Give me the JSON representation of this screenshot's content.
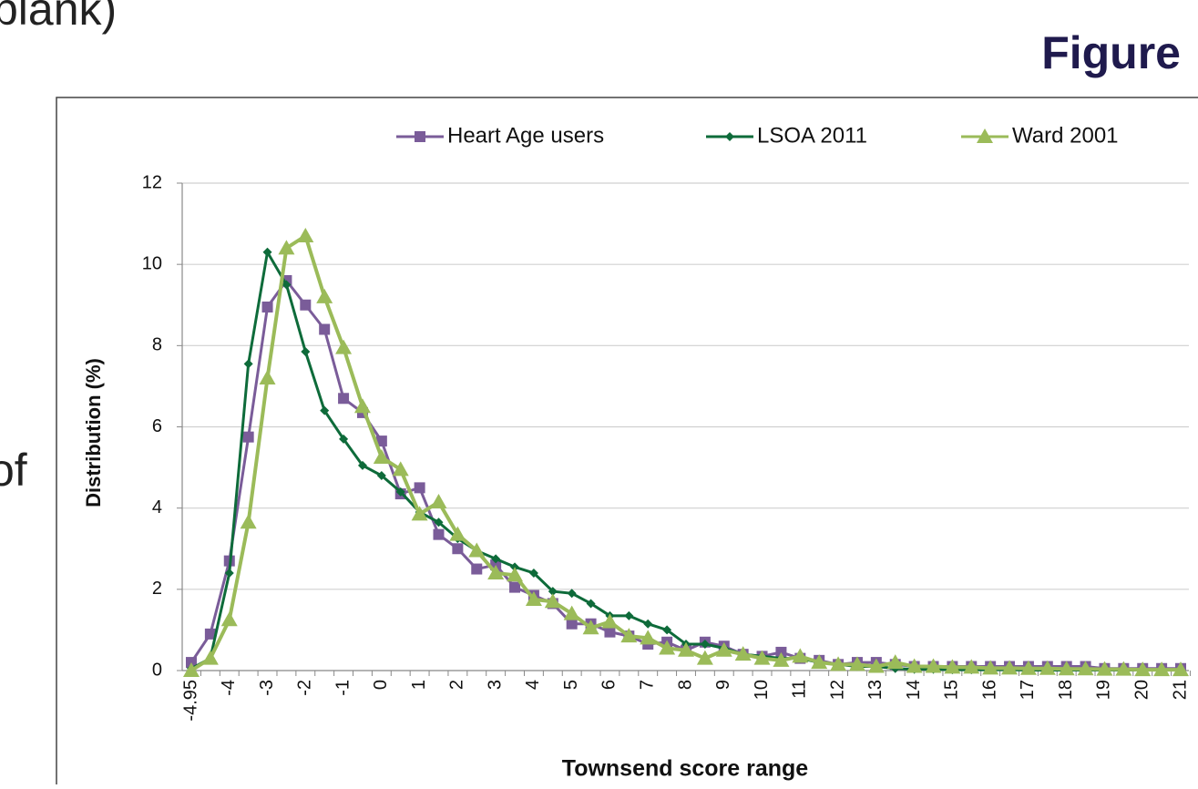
{
  "slide": {
    "top_left_text": "blank)",
    "heading": "Figure",
    "left_text": "of"
  },
  "chart_data": {
    "type": "line",
    "xlabel": "Townsend score range",
    "ylabel": "Distribution (%)",
    "categories": [
      "-4.95",
      null,
      "-4",
      null,
      "-3",
      null,
      "-2",
      null,
      "-1",
      null,
      "0",
      null,
      "1",
      null,
      "2",
      null,
      "3",
      null,
      "4",
      null,
      "5",
      null,
      "6",
      null,
      "7",
      null,
      "8",
      null,
      "9",
      null,
      "10",
      null,
      "11",
      null,
      "12",
      null,
      "13",
      null,
      "14",
      null,
      "15",
      null,
      "16",
      null,
      "17",
      null,
      "18",
      null,
      "19",
      null,
      "20",
      null,
      "21"
    ],
    "ylim": [
      0,
      12
    ],
    "yticks": [
      0,
      2,
      4,
      6,
      8,
      10,
      12
    ],
    "grid": true,
    "legend": "top",
    "series": [
      {
        "name": "Heart Age users",
        "color": "#7a5c99",
        "marker": "square",
        "values": [
          0.2,
          0.9,
          2.7,
          5.75,
          8.95,
          9.6,
          9.0,
          8.4,
          6.7,
          6.35,
          5.65,
          4.35,
          4.5,
          3.35,
          3.0,
          2.5,
          2.6,
          2.05,
          1.85,
          1.65,
          1.15,
          1.15,
          0.95,
          0.85,
          0.65,
          0.7,
          0.5,
          0.7,
          0.6,
          0.4,
          0.35,
          0.45,
          0.3,
          0.25,
          0.15,
          0.2,
          0.2,
          0.15,
          0.1,
          0.1,
          0.1,
          0.1,
          0.1,
          0.1,
          0.1,
          0.1,
          0.1,
          0.1,
          0.05,
          0.05,
          0.05,
          0.05,
          0.05
        ]
      },
      {
        "name": "LSOA 2011",
        "color": "#0e6b3a",
        "marker": "diamond",
        "values": [
          0.05,
          0.3,
          2.4,
          7.55,
          10.3,
          9.5,
          7.85,
          6.4,
          5.7,
          5.05,
          4.8,
          4.4,
          3.9,
          3.65,
          3.25,
          2.95,
          2.75,
          2.55,
          2.4,
          1.95,
          1.9,
          1.65,
          1.35,
          1.35,
          1.15,
          1.0,
          0.65,
          0.65,
          0.55,
          0.4,
          0.35,
          0.3,
          0.3,
          0.2,
          0.15,
          0.1,
          0.1,
          0.05,
          0.03,
          0.03,
          0.02,
          0.02,
          0.02,
          0.02,
          0.01,
          0.01,
          0.01,
          0.01,
          0.01,
          0.01,
          0.01,
          0.01,
          0.01
        ]
      },
      {
        "name": "Ward 2001",
        "color": "#9bbb59",
        "marker": "triangle",
        "values": [
          0.0,
          0.3,
          1.25,
          3.65,
          7.2,
          10.4,
          10.7,
          9.2,
          7.95,
          6.5,
          5.25,
          4.95,
          3.85,
          4.15,
          3.35,
          2.95,
          2.4,
          2.35,
          1.75,
          1.7,
          1.4,
          1.05,
          1.2,
          0.85,
          0.8,
          0.55,
          0.5,
          0.3,
          0.5,
          0.4,
          0.3,
          0.25,
          0.35,
          0.2,
          0.15,
          0.15,
          0.1,
          0.2,
          0.1,
          0.1,
          0.08,
          0.08,
          0.06,
          0.06,
          0.05,
          0.05,
          0.04,
          0.04,
          0.03,
          0.03,
          0.02,
          0.02,
          0.02
        ]
      }
    ]
  }
}
